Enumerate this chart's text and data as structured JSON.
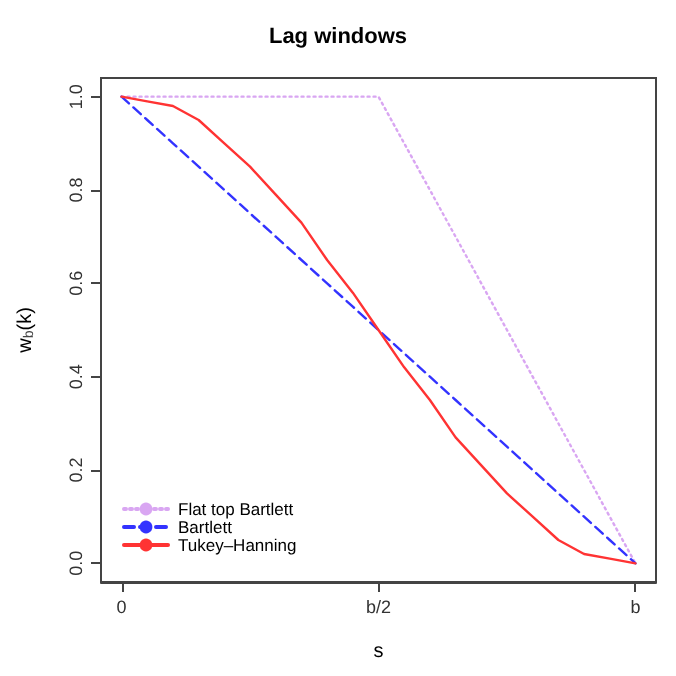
{
  "chart_data": {
    "type": "line",
    "title": "Lag windows",
    "xlabel": "s",
    "ylabel": "w$_{b}$(k)",
    "categories": [
      "0",
      null,
      null,
      null,
      null,
      null,
      null,
      null,
      null,
      null,
      "b/2",
      null,
      null,
      null,
      null,
      null,
      null,
      null,
      null,
      null,
      "b"
    ],
    "ylim": [
      -0.04,
      1.04
    ],
    "yticks": [
      {
        "value": 0,
        "label": "0.0"
      },
      {
        "value": 0.2,
        "label": "0.2"
      },
      {
        "value": 0.4,
        "label": "0.4"
      },
      {
        "value": 0.6,
        "label": "0.6"
      },
      {
        "value": 0.8,
        "label": "0.8"
      },
      {
        "value": 1,
        "label": "1.0"
      }
    ],
    "grid": false,
    "legend": "bottom left",
    "marker": "none",
    "series": [
      {
        "name": "Flat top Bartlett",
        "color": "#d9a6f2",
        "line_style": "dotted",
        "values": [
          1,
          1,
          1,
          1,
          1,
          1,
          1,
          1,
          1,
          1,
          1,
          0.9,
          0.8,
          0.7,
          0.6,
          0.5,
          0.4,
          0.3,
          0.2,
          0.1,
          0
        ]
      },
      {
        "name": "Bartlett",
        "color": "#3333ff",
        "line_style": "dashed",
        "values": [
          1,
          0.95,
          0.9,
          0.85,
          0.8,
          0.75,
          0.7,
          0.65,
          0.6,
          0.55,
          0.5,
          0.45,
          0.4,
          0.35,
          0.3,
          0.25,
          0.2,
          0.15,
          0.1,
          0.05,
          0
        ]
      },
      {
        "name": "Tukey–Hanning",
        "color": "#ff3333",
        "line_style": "solid",
        "values": [
          1,
          0.99,
          0.98,
          0.95,
          0.9,
          0.85,
          0.79,
          0.73,
          0.65,
          0.58,
          0.5,
          0.42,
          0.35,
          0.27,
          0.21,
          0.15,
          0.1,
          0.05,
          0.02,
          0.01,
          0
        ]
      }
    ]
  }
}
